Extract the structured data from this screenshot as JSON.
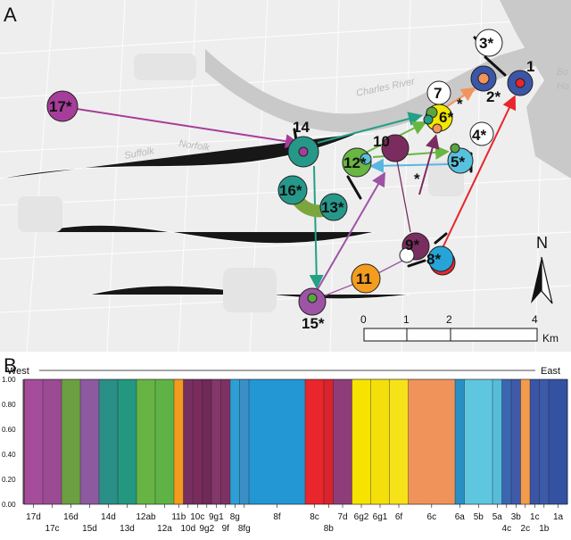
{
  "panels": {
    "a": "A",
    "b": "B"
  },
  "map": {
    "place_names": [
      "Charles River",
      "Suffolk",
      "Norfolk",
      "Bo",
      "Ha"
    ],
    "north_label": "N",
    "scale": {
      "ticks": [
        "0",
        "1",
        "2",
        "4"
      ],
      "unit": "Km"
    },
    "site_labels": [
      "1",
      "2*",
      "3*",
      "4*",
      "5*",
      "6*",
      "7",
      "8*",
      "9*",
      "10",
      "11",
      "12*",
      "13*",
      "14",
      "15*",
      "16*",
      "17*"
    ],
    "asterisk_marks": [
      "*",
      "*"
    ],
    "colors": {
      "s1": "#3b56a7",
      "s2": "#f2945b",
      "s4": "#5aa53f",
      "s5": "#58c1dd",
      "s6": "#f3e600",
      "s7": "#ffffff",
      "s8": "#26a4d8",
      "s9": "#7a2e60",
      "s10": "#7b2c5e",
      "s11": "#f39c1e",
      "s12": "#69b642",
      "s13": "#259f86",
      "s14": "#26988a",
      "s15": "#9e54a4",
      "s16": "#7ba63e",
      "s17": "#a73d9a",
      "migration_red": "#e8262b"
    }
  },
  "structure_plot": {
    "direction_west": "West",
    "direction_east": "East",
    "y_ticks": [
      "1.00",
      "0.80",
      "0.60",
      "0.40",
      "0.20",
      "0.00"
    ],
    "top_row_labels": [
      "17d",
      "16d",
      "14d",
      "12ab",
      "11b",
      "10c",
      "9g1",
      "8g",
      "8f",
      "8c",
      "7d",
      "6g2",
      "6g1",
      "6f",
      "6c",
      "6a",
      "5b",
      "5a",
      "3b",
      "1c",
      "1a"
    ],
    "bottom_row_labels": [
      "17c",
      "15d",
      "13d",
      "12a",
      "10d",
      "9g2",
      "9f",
      "8fg",
      "8b",
      "4c",
      "2c",
      "1b"
    ],
    "blocks": [
      {
        "label": "17d",
        "color": "#a54c9b",
        "w": 2
      },
      {
        "label": "17c",
        "color": "#9b4a94",
        "w": 2
      },
      {
        "label": "16d",
        "color": "#6b9f40",
        "w": 2
      },
      {
        "label": "15d",
        "color": "#8d5aa0",
        "w": 2
      },
      {
        "label": "14d",
        "color": "#2a8f86",
        "w": 2
      },
      {
        "label": "13d",
        "color": "#23977f",
        "w": 2
      },
      {
        "label": "12ab",
        "color": "#67b445",
        "w": 2
      },
      {
        "label": "12a",
        "color": "#5fb346",
        "w": 2
      },
      {
        "label": "11b",
        "color": "#f49a1e",
        "w": 1
      },
      {
        "label": "10d",
        "color": "#77305f",
        "w": 1
      },
      {
        "label": "10c",
        "color": "#7b2c5e",
        "w": 1
      },
      {
        "label": "9g2",
        "color": "#702a57",
        "w": 1
      },
      {
        "label": "9g1",
        "color": "#83376a",
        "w": 1
      },
      {
        "label": "9f",
        "color": "#7e3163",
        "w": 1
      },
      {
        "label": "8g",
        "color": "#2d9fd5",
        "w": 1
      },
      {
        "label": "8fg",
        "color": "#3a8fc6",
        "w": 1
      },
      {
        "label": "8f",
        "color": "#2397d3",
        "w": 6
      },
      {
        "label": "8c",
        "color": "#e8262b",
        "w": 2
      },
      {
        "label": "8b",
        "color": "#d9232d",
        "w": 1
      },
      {
        "label": "7d",
        "color": "#8e3c7a",
        "w": 2
      },
      {
        "label": "6g2",
        "color": "#f6e400",
        "w": 2
      },
      {
        "label": "6g1",
        "color": "#f4df0a",
        "w": 2
      },
      {
        "label": "6f",
        "color": "#f7e21a",
        "w": 2
      },
      {
        "label": "6c",
        "color": "#f0935b",
        "w": 5
      },
      {
        "label": "6a",
        "color": "#2a8fc4",
        "w": 1
      },
      {
        "label": "5b",
        "color": "#5ec6df",
        "w": 3
      },
      {
        "label": "5a",
        "color": "#56bcd8",
        "w": 1
      },
      {
        "label": "4c",
        "color": "#3a67b0",
        "w": 1
      },
      {
        "label": "3b",
        "color": "#3f5aa8",
        "w": 1
      },
      {
        "label": "2c",
        "color": "#f39b4d",
        "w": 1
      },
      {
        "label": "1c",
        "color": "#3a55a5",
        "w": 1
      },
      {
        "label": "1b",
        "color": "#3d5aa9",
        "w": 1
      },
      {
        "label": "1a",
        "color": "#3452a2",
        "w": 2
      }
    ]
  }
}
